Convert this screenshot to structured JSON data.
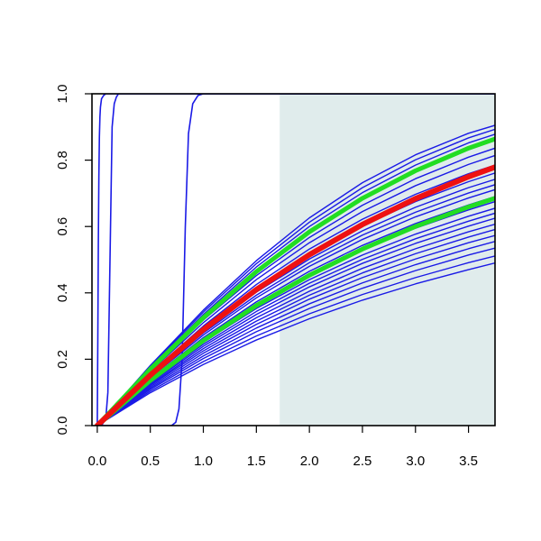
{
  "chart_data": {
    "type": "line",
    "title": "",
    "xlabel": "",
    "ylabel": "",
    "xlim": [
      -0.05,
      3.75
    ],
    "ylim": [
      0.0,
      1.0
    ],
    "xticks": [
      0.0,
      0.5,
      1.0,
      1.5,
      2.0,
      2.5,
      3.0,
      3.5
    ],
    "xtick_labels": [
      "0.0",
      "0.5",
      "1.0",
      "1.5",
      "2.0",
      "2.5",
      "3.0",
      "3.5"
    ],
    "yticks": [
      0.0,
      0.2,
      0.4,
      0.6,
      0.8,
      1.0
    ],
    "ytick_labels": [
      "0.0",
      "0.2",
      "0.4",
      "0.6",
      "0.8",
      "1.0"
    ],
    "grid": false,
    "shaded_region": {
      "x_from": 1.72,
      "x_to": 3.75,
      "color": "#e0ecec"
    },
    "colors": {
      "blue": "#1a1ae6",
      "green": "#22dd22",
      "red": "#ee1111",
      "axis": "#000000"
    },
    "step_curves": [
      {
        "x": [
          0.0,
          0.005,
          0.01,
          0.015,
          0.02,
          0.025,
          0.03,
          0.04,
          0.06,
          0.08,
          3.75
        ],
        "y": [
          0.0,
          0.25,
          0.55,
          0.75,
          0.87,
          0.93,
          0.96,
          0.985,
          0.995,
          1.0,
          1.0
        ]
      },
      {
        "x": [
          0.0,
          0.02,
          0.04,
          0.06,
          0.08,
          0.1,
          0.12,
          0.14,
          0.16,
          0.18,
          0.2,
          3.75
        ],
        "y": [
          0.0,
          0.0,
          0.0,
          0.01,
          0.02,
          0.1,
          0.5,
          0.9,
          0.97,
          0.99,
          1.0,
          1.0
        ]
      },
      {
        "x": [
          0.0,
          0.7,
          0.74,
          0.77,
          0.8,
          0.83,
          0.86,
          0.9,
          0.95,
          1.0,
          3.75
        ],
        "y": [
          0.0,
          0.0,
          0.01,
          0.05,
          0.2,
          0.6,
          0.88,
          0.97,
          0.995,
          1.0,
          1.0
        ]
      }
    ],
    "blue_curves": [
      {
        "x": [
          0.0,
          0.5,
          1.0,
          1.5,
          2.0,
          2.5,
          3.0,
          3.5,
          3.75
        ],
        "y": [
          0.0,
          0.175,
          0.335,
          0.478,
          0.6,
          0.702,
          0.785,
          0.852,
          0.878
        ]
      },
      {
        "x": [
          0.0,
          0.5,
          1.0,
          1.5,
          2.0,
          2.5,
          3.0,
          3.5,
          3.75
        ],
        "y": [
          0.0,
          0.178,
          0.342,
          0.488,
          0.613,
          0.717,
          0.801,
          0.867,
          0.893
        ]
      },
      {
        "x": [
          0.0,
          0.5,
          1.0,
          1.5,
          2.0,
          2.5,
          3.0,
          3.5,
          3.75
        ],
        "y": [
          0.0,
          0.181,
          0.348,
          0.497,
          0.626,
          0.732,
          0.816,
          0.881,
          0.905
        ]
      },
      {
        "x": [
          0.0,
          0.5,
          1.0,
          1.5,
          2.0,
          2.5,
          3.0,
          3.5,
          3.75
        ],
        "y": [
          0.0,
          0.167,
          0.318,
          0.452,
          0.567,
          0.664,
          0.744,
          0.809,
          0.836
        ]
      },
      {
        "x": [
          0.0,
          0.5,
          1.0,
          1.5,
          2.0,
          2.5,
          3.0,
          3.5,
          3.75
        ],
        "y": [
          0.0,
          0.163,
          0.31,
          0.44,
          0.551,
          0.645,
          0.723,
          0.787,
          0.814
        ]
      },
      {
        "x": [
          0.0,
          0.5,
          1.0,
          1.5,
          2.0,
          2.5,
          3.0,
          3.5,
          3.75
        ],
        "y": [
          0.0,
          0.158,
          0.3,
          0.425,
          0.532,
          0.622,
          0.697,
          0.759,
          0.785
        ]
      },
      {
        "x": [
          0.0,
          0.5,
          1.0,
          1.5,
          2.0,
          2.5,
          3.0,
          3.5,
          3.75
        ],
        "y": [
          0.0,
          0.154,
          0.291,
          0.412,
          0.515,
          0.602,
          0.675,
          0.735,
          0.761
        ]
      },
      {
        "x": [
          0.0,
          0.5,
          1.0,
          1.5,
          2.0,
          2.5,
          3.0,
          3.5,
          3.75
        ],
        "y": [
          0.0,
          0.151,
          0.285,
          0.402,
          0.502,
          0.587,
          0.658,
          0.717,
          0.742
        ]
      },
      {
        "x": [
          0.0,
          0.5,
          1.0,
          1.5,
          2.0,
          2.5,
          3.0,
          3.5,
          3.75
        ],
        "y": [
          0.0,
          0.148,
          0.279,
          0.393,
          0.491,
          0.574,
          0.643,
          0.701,
          0.726
        ]
      },
      {
        "x": [
          0.0,
          0.5,
          1.0,
          1.5,
          2.0,
          2.5,
          3.0,
          3.5,
          3.75
        ],
        "y": [
          0.0,
          0.145,
          0.273,
          0.385,
          0.48,
          0.561,
          0.629,
          0.686,
          0.711
        ]
      },
      {
        "x": [
          0.0,
          0.5,
          1.0,
          1.5,
          2.0,
          2.5,
          3.0,
          3.5,
          3.75
        ],
        "y": [
          0.0,
          0.141,
          0.265,
          0.373,
          0.465,
          0.543,
          0.609,
          0.665,
          0.69
        ]
      },
      {
        "x": [
          0.0,
          0.5,
          1.0,
          1.5,
          2.0,
          2.5,
          3.0,
          3.5,
          3.75
        ],
        "y": [
          0.0,
          0.138,
          0.259,
          0.364,
          0.454,
          0.53,
          0.595,
          0.65,
          0.675
        ]
      },
      {
        "x": [
          0.0,
          0.5,
          1.0,
          1.5,
          2.0,
          2.5,
          3.0,
          3.5,
          3.75
        ],
        "y": [
          0.0,
          0.134,
          0.251,
          0.353,
          0.44,
          0.514,
          0.577,
          0.631,
          0.655
        ]
      },
      {
        "x": [
          0.0,
          0.5,
          1.0,
          1.5,
          2.0,
          2.5,
          3.0,
          3.5,
          3.75
        ],
        "y": [
          0.0,
          0.131,
          0.245,
          0.344,
          0.429,
          0.501,
          0.563,
          0.616,
          0.64
        ]
      },
      {
        "x": [
          0.0,
          0.5,
          1.0,
          1.5,
          2.0,
          2.5,
          3.0,
          3.5,
          3.75
        ],
        "y": [
          0.0,
          0.128,
          0.239,
          0.335,
          0.418,
          0.489,
          0.549,
          0.601,
          0.625
        ]
      },
      {
        "x": [
          0.0,
          0.5,
          1.0,
          1.5,
          2.0,
          2.5,
          3.0,
          3.5,
          3.75
        ],
        "y": [
          0.0,
          0.124,
          0.232,
          0.325,
          0.405,
          0.474,
          0.533,
          0.584,
          0.607
        ]
      },
      {
        "x": [
          0.0,
          0.5,
          1.0,
          1.5,
          2.0,
          2.5,
          3.0,
          3.5,
          3.75
        ],
        "y": [
          0.0,
          0.121,
          0.225,
          0.315,
          0.393,
          0.46,
          0.518,
          0.568,
          0.591
        ]
      },
      {
        "x": [
          0.0,
          0.5,
          1.0,
          1.5,
          2.0,
          2.5,
          3.0,
          3.5,
          3.75
        ],
        "y": [
          0.0,
          0.117,
          0.218,
          0.305,
          0.381,
          0.446,
          0.502,
          0.551,
          0.573
        ]
      },
      {
        "x": [
          0.0,
          0.5,
          1.0,
          1.5,
          2.0,
          2.5,
          3.0,
          3.5,
          3.75
        ],
        "y": [
          0.0,
          0.113,
          0.21,
          0.294,
          0.367,
          0.43,
          0.485,
          0.533,
          0.555
        ]
      },
      {
        "x": [
          0.0,
          0.5,
          1.0,
          1.5,
          2.0,
          2.5,
          3.0,
          3.5,
          3.75
        ],
        "y": [
          0.0,
          0.109,
          0.202,
          0.283,
          0.353,
          0.414,
          0.467,
          0.514,
          0.535
        ]
      },
      {
        "x": [
          0.0,
          0.5,
          1.0,
          1.5,
          2.0,
          2.5,
          3.0,
          3.5,
          3.75
        ],
        "y": [
          0.0,
          0.104,
          0.193,
          0.27,
          0.337,
          0.395,
          0.446,
          0.491,
          0.511
        ]
      },
      {
        "x": [
          0.0,
          0.5,
          1.0,
          1.5,
          2.0,
          2.5,
          3.0,
          3.5,
          3.75
        ],
        "y": [
          0.0,
          0.099,
          0.184,
          0.258,
          0.322,
          0.378,
          0.427,
          0.47,
          0.49
        ]
      }
    ],
    "green_curves": [
      {
        "x": [
          0.0,
          0.5,
          1.0,
          1.5,
          2.0,
          2.5,
          3.0,
          3.5,
          3.75
        ],
        "y": [
          0.0,
          0.17,
          0.325,
          0.464,
          0.584,
          0.685,
          0.768,
          0.836,
          0.864
        ]
      },
      {
        "x": [
          0.0,
          0.5,
          1.0,
          1.5,
          2.0,
          2.5,
          3.0,
          3.5,
          3.75
        ],
        "y": [
          0.0,
          0.136,
          0.256,
          0.362,
          0.453,
          0.532,
          0.6,
          0.659,
          0.685
        ]
      }
    ],
    "red_curve": {
      "x": [
        0.0,
        0.5,
        1.0,
        1.5,
        2.0,
        2.5,
        3.0,
        3.5,
        3.75
      ],
      "y": [
        0.0,
        0.152,
        0.289,
        0.41,
        0.515,
        0.606,
        0.684,
        0.75,
        0.779
      ]
    }
  }
}
